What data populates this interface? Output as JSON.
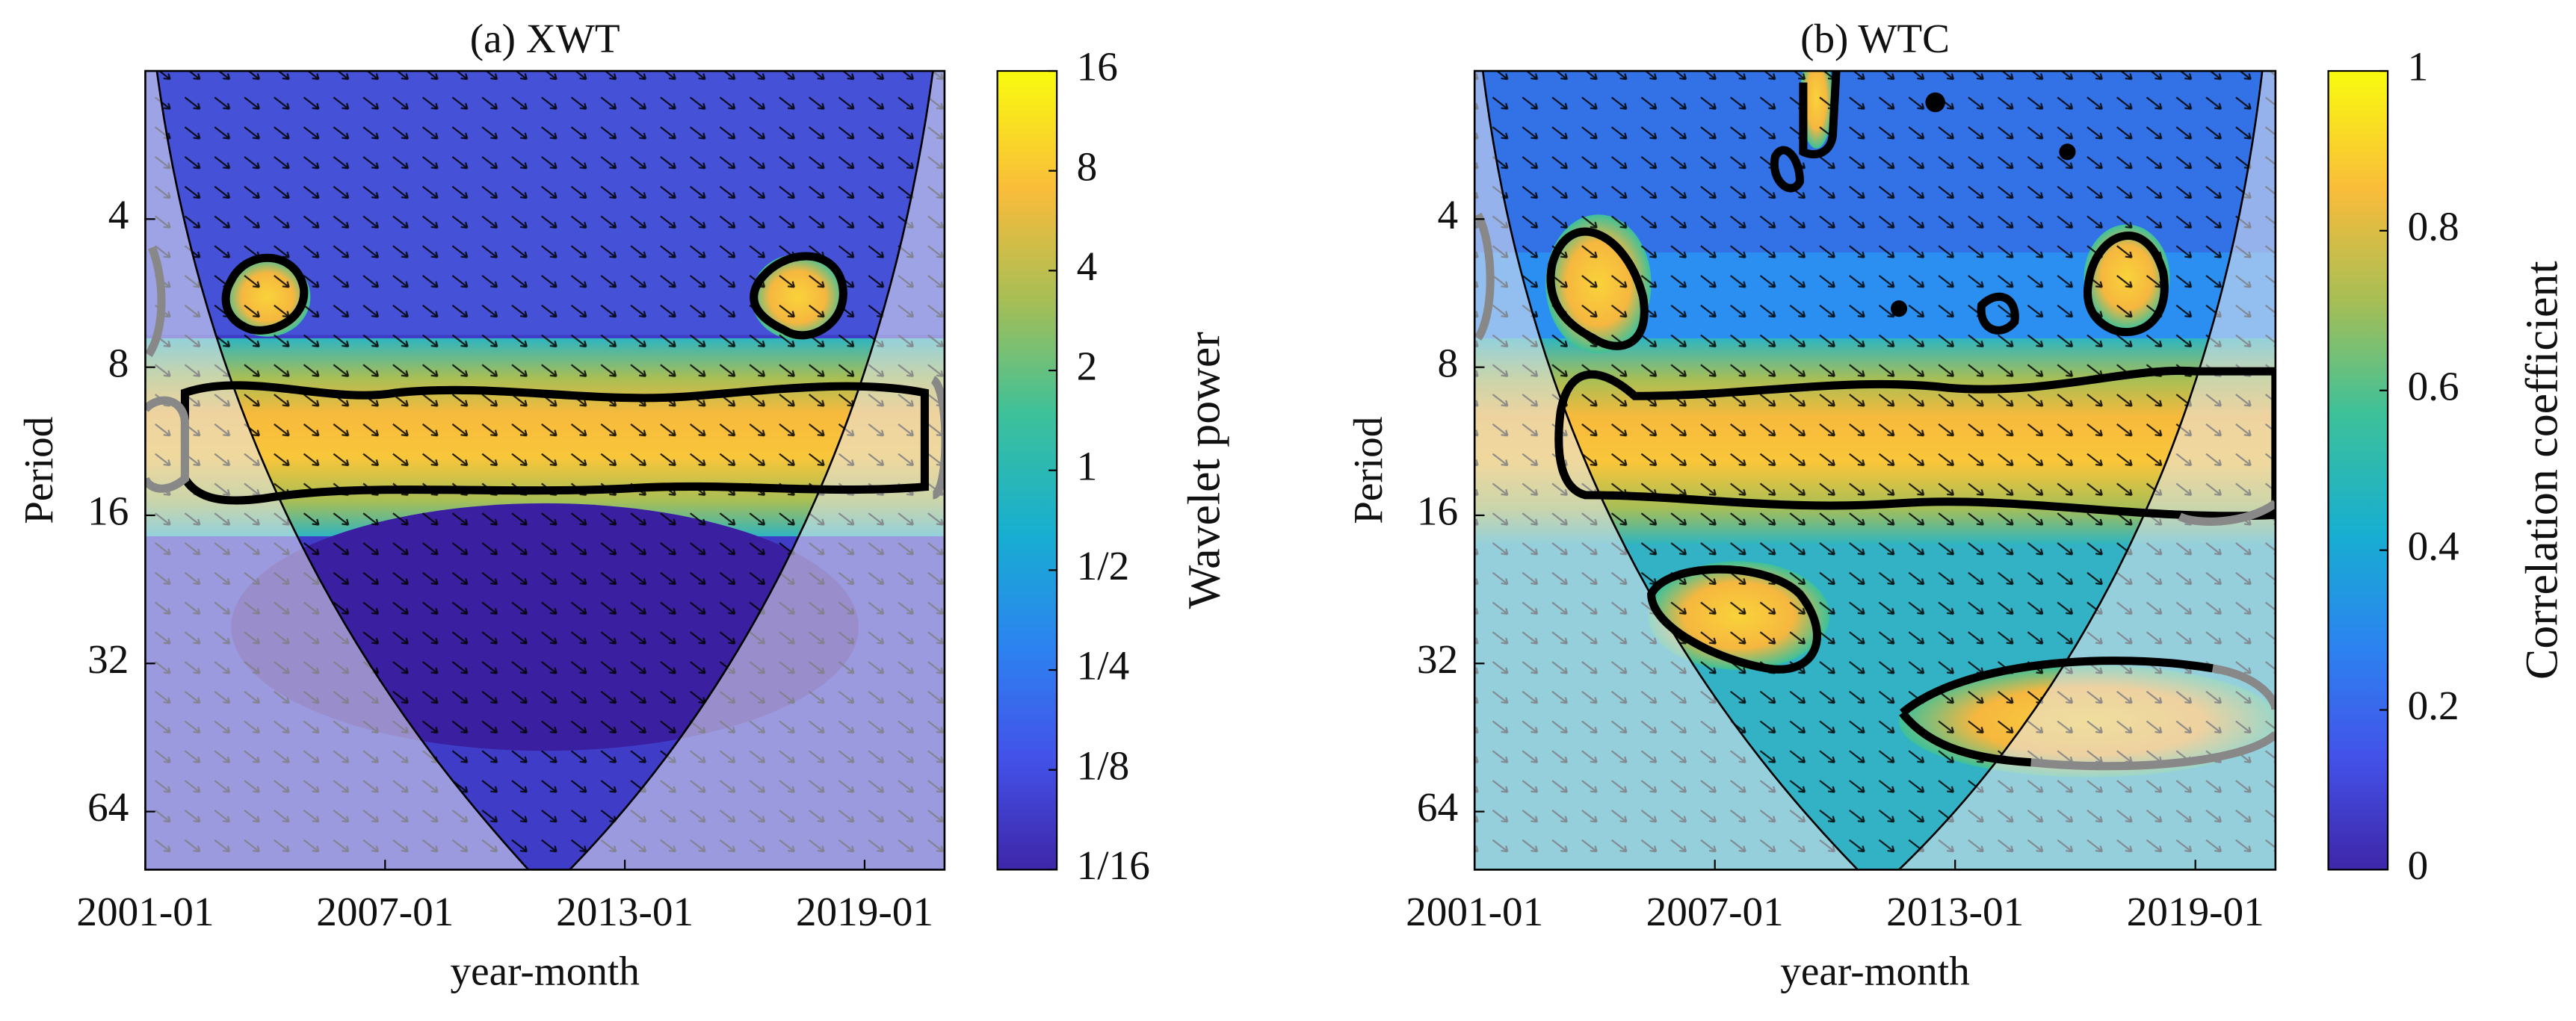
{
  "chart_data": [
    {
      "type": "heatmap",
      "title": "(a) XWT",
      "xlabel": "year-month",
      "ylabel": "Period",
      "xlim": [
        "2001-01",
        "2021-01"
      ],
      "xticks": [
        "2001-01",
        "2007-01",
        "2013-01",
        "2019-01"
      ],
      "ylim": [
        2,
        84
      ],
      "yticks": [
        4,
        8,
        16,
        32,
        64
      ],
      "log_y": true,
      "y_reversed": true,
      "colorbar": {
        "label": "Wavelet power",
        "lim": [
          0.0625,
          16
        ],
        "log": true,
        "ticks": [
          {
            "value": 16,
            "label": "16"
          },
          {
            "value": 8,
            "label": "8"
          },
          {
            "value": 4,
            "label": "4"
          },
          {
            "value": 2,
            "label": "2"
          },
          {
            "value": 1,
            "label": "1"
          },
          {
            "value": 0.5,
            "label": "1/2"
          },
          {
            "value": 0.25,
            "label": "1/4"
          },
          {
            "value": 0.125,
            "label": "1/8"
          },
          {
            "value": 0.0625,
            "label": "1/16"
          }
        ]
      }
    },
    {
      "type": "heatmap",
      "title": "(b) WTC",
      "xlabel": "year-month",
      "ylabel": "Period",
      "xlim": [
        "2001-01",
        "2021-01"
      ],
      "xticks": [
        "2001-01",
        "2007-01",
        "2013-01",
        "2019-01"
      ],
      "ylim": [
        2,
        84
      ],
      "yticks": [
        4,
        8,
        16,
        32,
        64
      ],
      "log_y": true,
      "y_reversed": true,
      "colorbar": {
        "label": "Correlation coefficient",
        "lim": [
          0,
          1
        ],
        "log": false,
        "ticks": [
          0,
          0.2,
          0.4,
          0.6,
          0.8,
          1
        ]
      }
    }
  ]
}
